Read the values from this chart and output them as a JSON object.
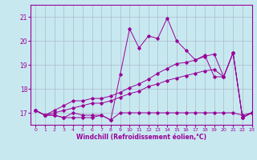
{
  "xlabel": "Windchill (Refroidissement éolien,°C)",
  "ylabel": "",
  "xlim": [
    -0.5,
    23
  ],
  "ylim": [
    16.5,
    21.5
  ],
  "yticks": [
    17,
    18,
    19,
    20,
    21
  ],
  "xticks": [
    0,
    1,
    2,
    3,
    4,
    5,
    6,
    7,
    8,
    9,
    10,
    11,
    12,
    13,
    14,
    15,
    16,
    17,
    18,
    19,
    20,
    21,
    22,
    23
  ],
  "bg_color": "#c8e8f0",
  "grid_color": "#aabbcc",
  "line_color": "#990099",
  "lines": [
    [
      17.1,
      16.9,
      16.9,
      16.8,
      16.8,
      16.8,
      16.8,
      16.9,
      16.7,
      17.0,
      17.0,
      17.0,
      17.0,
      17.0,
      17.0,
      17.0,
      17.0,
      17.0,
      17.0,
      17.0,
      17.0,
      17.0,
      16.9,
      17.0
    ],
    [
      17.1,
      16.9,
      16.9,
      16.8,
      17.0,
      16.9,
      16.9,
      16.9,
      16.7,
      18.6,
      20.5,
      19.7,
      20.2,
      20.1,
      20.95,
      20.0,
      19.6,
      19.2,
      19.4,
      18.5,
      18.5,
      19.5,
      16.8,
      17.0
    ],
    [
      17.1,
      16.9,
      17.1,
      17.3,
      17.5,
      17.5,
      17.6,
      17.6,
      17.7,
      17.85,
      18.05,
      18.2,
      18.4,
      18.65,
      18.85,
      19.05,
      19.1,
      19.2,
      19.35,
      19.45,
      18.5,
      19.5,
      16.8,
      17.0
    ],
    [
      17.1,
      16.9,
      17.0,
      17.1,
      17.2,
      17.3,
      17.4,
      17.4,
      17.5,
      17.65,
      17.8,
      17.9,
      18.1,
      18.2,
      18.35,
      18.45,
      18.55,
      18.65,
      18.75,
      18.8,
      18.5,
      19.5,
      16.8,
      17.0
    ]
  ]
}
